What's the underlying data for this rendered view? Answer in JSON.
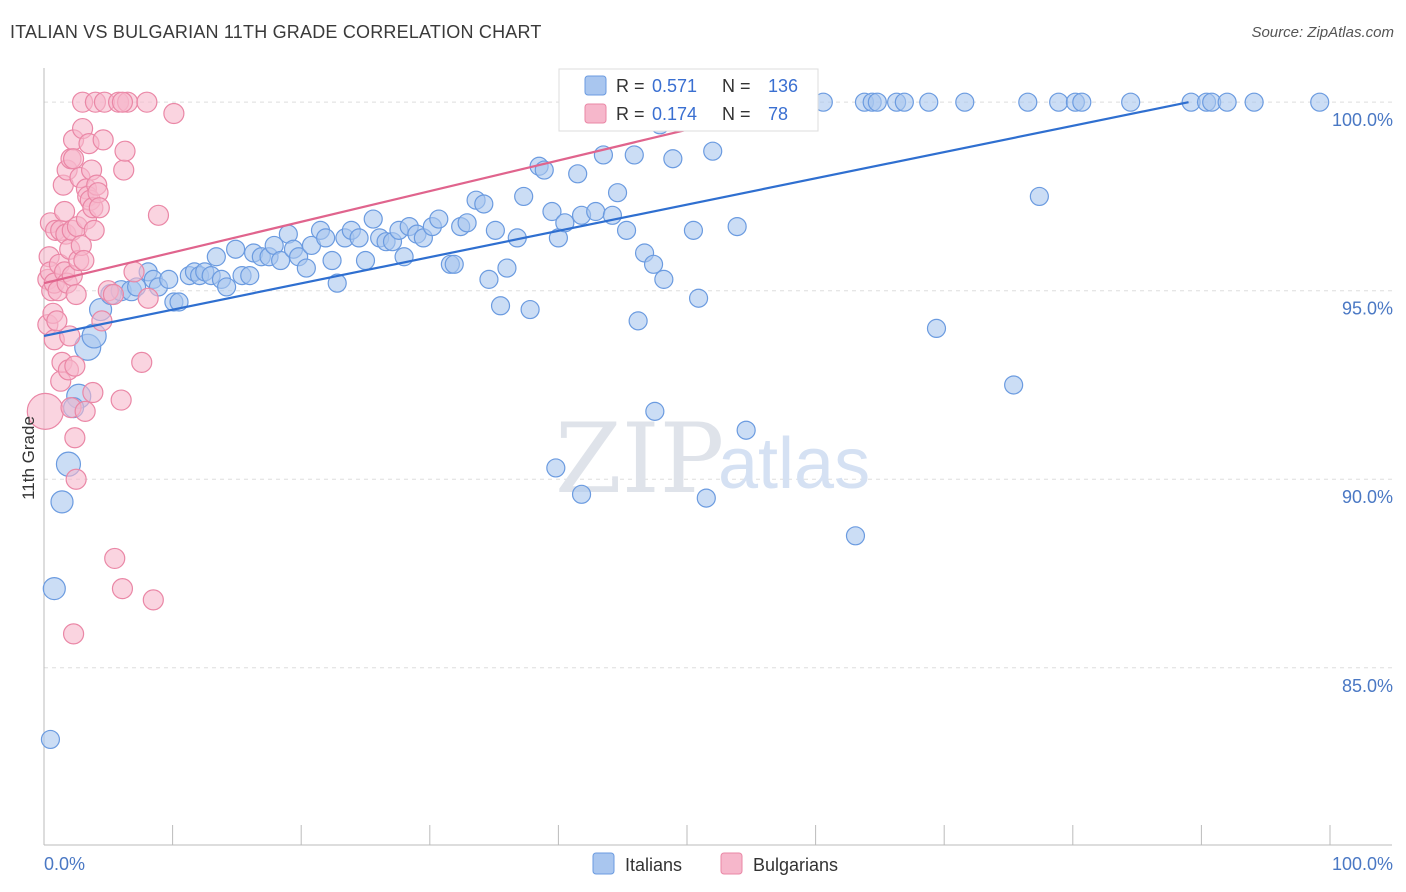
{
  "title": "ITALIAN VS BULGARIAN 11TH GRADE CORRELATION CHART",
  "source": "Source: ZipAtlas.com",
  "watermark": {
    "zip": "ZIP",
    "atlas": "atlas"
  },
  "colors": {
    "blue_fill": "#a9c6ef",
    "blue_stroke": "#6b9be0",
    "blue_line": "#2f6fd0",
    "pink_fill": "#f6b7cb",
    "pink_stroke": "#ea87a6",
    "pink_line": "#e0648d",
    "axis_text": "#4a78c4",
    "grid": "#dddddd"
  },
  "legend": {
    "rows": [
      {
        "r_label": "R =",
        "r_value": "0.571",
        "n_label": "N =",
        "n_value": "136"
      },
      {
        "r_label": "R =",
        "r_value": "0.174",
        "n_label": "N =",
        "n_value": "78"
      }
    ]
  },
  "bottom_legend": [
    "Italians",
    "Bulgarians"
  ],
  "chart_data": {
    "type": "scatter",
    "title": "ITALIAN VS BULGARIAN 11TH GRADE CORRELATION CHART",
    "xlabel": "",
    "ylabel": "11th Grade",
    "xlim": [
      0,
      100
    ],
    "ylim": [
      80.3,
      100.8
    ],
    "y_ticks": [
      85,
      90,
      95,
      100
    ],
    "y_tick_labels": [
      "85.0%",
      "90.0%",
      "95.0%",
      "100.0%"
    ],
    "x_tick_labels": [
      "0.0%",
      "100.0%"
    ],
    "series": [
      {
        "name": "Italians",
        "R": 0.571,
        "N": 136,
        "trend": {
          "x": [
            0,
            89
          ],
          "y": [
            93.8,
            100.0
          ]
        },
        "points": [
          [
            0.5,
            83.1,
            9
          ],
          [
            0.8,
            87.1,
            11
          ],
          [
            1.4,
            89.4,
            11
          ],
          [
            1.9,
            90.4,
            12
          ],
          [
            2.7,
            92.2,
            12
          ],
          [
            2.3,
            91.9,
            10
          ],
          [
            3.4,
            93.5,
            13
          ],
          [
            3.9,
            93.8,
            12
          ],
          [
            4.4,
            94.5,
            11
          ],
          [
            5.2,
            94.9,
            10
          ],
          [
            6.0,
            95.0,
            10
          ],
          [
            6.8,
            95.0,
            10
          ],
          [
            7.2,
            95.1,
            9
          ],
          [
            8.1,
            95.5,
            9
          ],
          [
            8.5,
            95.3,
            9
          ],
          [
            8.9,
            95.1,
            9
          ],
          [
            9.7,
            95.3,
            9
          ],
          [
            10.1,
            94.7,
            9
          ],
          [
            10.5,
            94.7,
            9
          ],
          [
            11.3,
            95.4,
            9
          ],
          [
            11.7,
            95.5,
            9
          ],
          [
            12.1,
            95.4,
            9
          ],
          [
            12.5,
            95.5,
            9
          ],
          [
            13.0,
            95.4,
            9
          ],
          [
            13.4,
            95.9,
            9
          ],
          [
            13.8,
            95.3,
            9
          ],
          [
            14.2,
            95.1,
            9
          ],
          [
            14.9,
            96.1,
            9
          ],
          [
            15.4,
            95.4,
            9
          ],
          [
            16.0,
            95.4,
            9
          ],
          [
            16.3,
            96.0,
            9
          ],
          [
            16.9,
            95.9,
            9
          ],
          [
            17.5,
            95.9,
            9
          ],
          [
            17.9,
            96.2,
            9
          ],
          [
            18.4,
            95.8,
            9
          ],
          [
            19.0,
            96.5,
            9
          ],
          [
            19.4,
            96.1,
            9
          ],
          [
            19.8,
            95.9,
            9
          ],
          [
            20.4,
            95.6,
            9
          ],
          [
            20.8,
            96.2,
            9
          ],
          [
            21.5,
            96.6,
            9
          ],
          [
            21.9,
            96.4,
            9
          ],
          [
            22.4,
            95.8,
            9
          ],
          [
            22.8,
            95.2,
            9
          ],
          [
            23.4,
            96.4,
            9
          ],
          [
            23.9,
            96.6,
            9
          ],
          [
            24.5,
            96.4,
            9
          ],
          [
            25.0,
            95.8,
            9
          ],
          [
            25.6,
            96.9,
            9
          ],
          [
            26.1,
            96.4,
            9
          ],
          [
            26.6,
            96.3,
            9
          ],
          [
            27.1,
            96.3,
            9
          ],
          [
            27.6,
            96.6,
            9
          ],
          [
            28.0,
            95.9,
            9
          ],
          [
            28.4,
            96.7,
            9
          ],
          [
            29.0,
            96.5,
            9
          ],
          [
            29.5,
            96.4,
            9
          ],
          [
            30.2,
            96.7,
            9
          ],
          [
            30.7,
            96.9,
            9
          ],
          [
            31.6,
            95.7,
            9
          ],
          [
            31.9,
            95.7,
            9
          ],
          [
            32.4,
            96.7,
            9
          ],
          [
            32.9,
            96.8,
            9
          ],
          [
            33.6,
            97.4,
            9
          ],
          [
            34.2,
            97.3,
            9
          ],
          [
            34.6,
            95.3,
            9
          ],
          [
            35.1,
            96.6,
            9
          ],
          [
            35.5,
            94.6,
            9
          ],
          [
            36.0,
            95.6,
            9
          ],
          [
            36.8,
            96.4,
            9
          ],
          [
            37.3,
            97.5,
            9
          ],
          [
            37.8,
            94.5,
            9
          ],
          [
            38.5,
            98.3,
            9
          ],
          [
            38.9,
            98.2,
            9
          ],
          [
            39.5,
            97.1,
            9
          ],
          [
            40.0,
            96.4,
            9
          ],
          [
            40.5,
            96.8,
            9
          ],
          [
            41.5,
            98.1,
            9
          ],
          [
            41.8,
            97.0,
            9
          ],
          [
            42.9,
            97.1,
            9
          ],
          [
            43.5,
            98.6,
            9
          ],
          [
            44.2,
            97.0,
            9
          ],
          [
            44.6,
            97.6,
            9
          ],
          [
            45.3,
            96.6,
            9
          ],
          [
            45.9,
            98.6,
            9
          ],
          [
            46.2,
            94.2,
            9
          ],
          [
            46.7,
            96.0,
            9
          ],
          [
            47.4,
            95.7,
            9
          ],
          [
            47.5,
            91.8,
            9
          ],
          [
            47.9,
            99.4,
            9
          ],
          [
            48.2,
            95.3,
            9
          ],
          [
            48.9,
            98.5,
            9
          ],
          [
            49.8,
            99.6,
            9
          ],
          [
            50.5,
            96.6,
            9
          ],
          [
            50.9,
            94.8,
            9
          ],
          [
            51.6,
            100.0,
            9
          ],
          [
            52.0,
            98.7,
            9
          ],
          [
            52.5,
            100.0,
            9
          ],
          [
            53.4,
            99.7,
            9
          ],
          [
            53.8,
            100.0,
            9
          ],
          [
            53.9,
            96.7,
            9
          ],
          [
            54.6,
            91.3,
            9
          ],
          [
            54.9,
            100.0,
            9
          ],
          [
            55.5,
            100.0,
            9
          ],
          [
            56.3,
            100.0,
            9
          ],
          [
            57.1,
            100.0,
            9
          ],
          [
            57.5,
            100.0,
            9
          ],
          [
            58.4,
            100.0,
            9
          ],
          [
            59.0,
            100.0,
            9
          ],
          [
            60.6,
            100.0,
            9
          ],
          [
            63.8,
            100.0,
            9
          ],
          [
            63.1,
            88.5,
            9
          ],
          [
            64.4,
            100.0,
            9
          ],
          [
            64.8,
            100.0,
            9
          ],
          [
            66.3,
            100.0,
            9
          ],
          [
            66.9,
            100.0,
            9
          ],
          [
            68.8,
            100.0,
            9
          ],
          [
            69.4,
            94.0,
            9
          ],
          [
            71.6,
            100.0,
            9
          ],
          [
            75.4,
            92.5,
            9
          ],
          [
            76.5,
            100.0,
            9
          ],
          [
            77.4,
            97.5,
            9
          ],
          [
            78.9,
            100.0,
            9
          ],
          [
            80.2,
            100.0,
            9
          ],
          [
            80.7,
            100.0,
            9
          ],
          [
            84.5,
            100.0,
            9
          ],
          [
            89.2,
            100.0,
            9
          ],
          [
            90.4,
            100.0,
            9
          ],
          [
            90.8,
            100.0,
            9
          ],
          [
            92.0,
            100.0,
            9
          ],
          [
            94.1,
            100.0,
            9
          ],
          [
            99.2,
            100.0,
            9
          ],
          [
            39.8,
            90.3,
            9
          ],
          [
            51.5,
            89.5,
            9
          ],
          [
            41.8,
            89.6,
            9
          ]
        ]
      },
      {
        "name": "Bulgarians",
        "R": 0.174,
        "N": 78,
        "trend": {
          "x": [
            0,
            59
          ],
          "y": [
            95.2,
            100.0
          ]
        },
        "points": [
          [
            0.1,
            91.8,
            18
          ],
          [
            0.3,
            95.3,
            10
          ],
          [
            0.3,
            94.1,
            10
          ],
          [
            0.4,
            95.9,
            10
          ],
          [
            0.5,
            96.8,
            10
          ],
          [
            0.5,
            95.5,
            10
          ],
          [
            0.6,
            95.0,
            10
          ],
          [
            0.7,
            94.4,
            10
          ],
          [
            0.8,
            93.7,
            10
          ],
          [
            0.8,
            95.2,
            10
          ],
          [
            0.9,
            96.6,
            10
          ],
          [
            1.0,
            94.2,
            10
          ],
          [
            1.1,
            95.0,
            10
          ],
          [
            1.2,
            95.7,
            10
          ],
          [
            1.3,
            92.6,
            10
          ],
          [
            1.3,
            96.6,
            10
          ],
          [
            1.4,
            93.1,
            10
          ],
          [
            1.5,
            97.8,
            10
          ],
          [
            1.6,
            95.5,
            10
          ],
          [
            1.6,
            97.1,
            10
          ],
          [
            1.7,
            96.5,
            10
          ],
          [
            1.8,
            98.2,
            10
          ],
          [
            1.8,
            95.2,
            10
          ],
          [
            1.9,
            92.9,
            10
          ],
          [
            2.0,
            93.8,
            10
          ],
          [
            2.0,
            96.1,
            10
          ],
          [
            2.1,
            98.5,
            10
          ],
          [
            2.1,
            91.9,
            10
          ],
          [
            2.2,
            95.4,
            10
          ],
          [
            2.2,
            96.6,
            10
          ],
          [
            2.3,
            99.0,
            10
          ],
          [
            2.3,
            98.5,
            10
          ],
          [
            2.4,
            91.1,
            10
          ],
          [
            2.4,
            93.0,
            10
          ],
          [
            2.5,
            94.9,
            10
          ],
          [
            2.5,
            90.0,
            10
          ],
          [
            2.6,
            96.7,
            10
          ],
          [
            2.7,
            95.8,
            10
          ],
          [
            2.8,
            98.0,
            10
          ],
          [
            2.9,
            96.2,
            10
          ],
          [
            3.0,
            100.0,
            10
          ],
          [
            3.0,
            99.3,
            10
          ],
          [
            3.1,
            95.8,
            10
          ],
          [
            3.2,
            91.8,
            10
          ],
          [
            3.3,
            96.9,
            10
          ],
          [
            3.3,
            97.7,
            10
          ],
          [
            3.4,
            97.5,
            10
          ],
          [
            3.5,
            98.9,
            10
          ],
          [
            3.6,
            97.4,
            10
          ],
          [
            3.7,
            98.2,
            10
          ],
          [
            3.8,
            97.2,
            10
          ],
          [
            3.9,
            96.6,
            10
          ],
          [
            4.0,
            100.0,
            10
          ],
          [
            4.1,
            97.8,
            10
          ],
          [
            4.2,
            97.6,
            10
          ],
          [
            4.3,
            97.2,
            10
          ],
          [
            4.5,
            94.2,
            10
          ],
          [
            4.6,
            99.0,
            10
          ],
          [
            4.7,
            100.0,
            10
          ],
          [
            5.0,
            95.0,
            10
          ],
          [
            5.4,
            94.9,
            10
          ],
          [
            5.5,
            87.9,
            10
          ],
          [
            5.8,
            100.0,
            10
          ],
          [
            6.0,
            92.1,
            10
          ],
          [
            6.1,
            87.1,
            10
          ],
          [
            6.2,
            98.2,
            10
          ],
          [
            6.3,
            98.7,
            10
          ],
          [
            6.5,
            100.0,
            10
          ],
          [
            6.1,
            100.0,
            10
          ],
          [
            7.0,
            95.5,
            10
          ],
          [
            7.6,
            93.1,
            10
          ],
          [
            8.0,
            100.0,
            10
          ],
          [
            8.1,
            94.8,
            10
          ],
          [
            8.5,
            86.8,
            10
          ],
          [
            8.9,
            97.0,
            10
          ],
          [
            10.1,
            99.7,
            10
          ],
          [
            2.3,
            85.9,
            10
          ],
          [
            3.8,
            92.3,
            10
          ]
        ]
      }
    ]
  }
}
